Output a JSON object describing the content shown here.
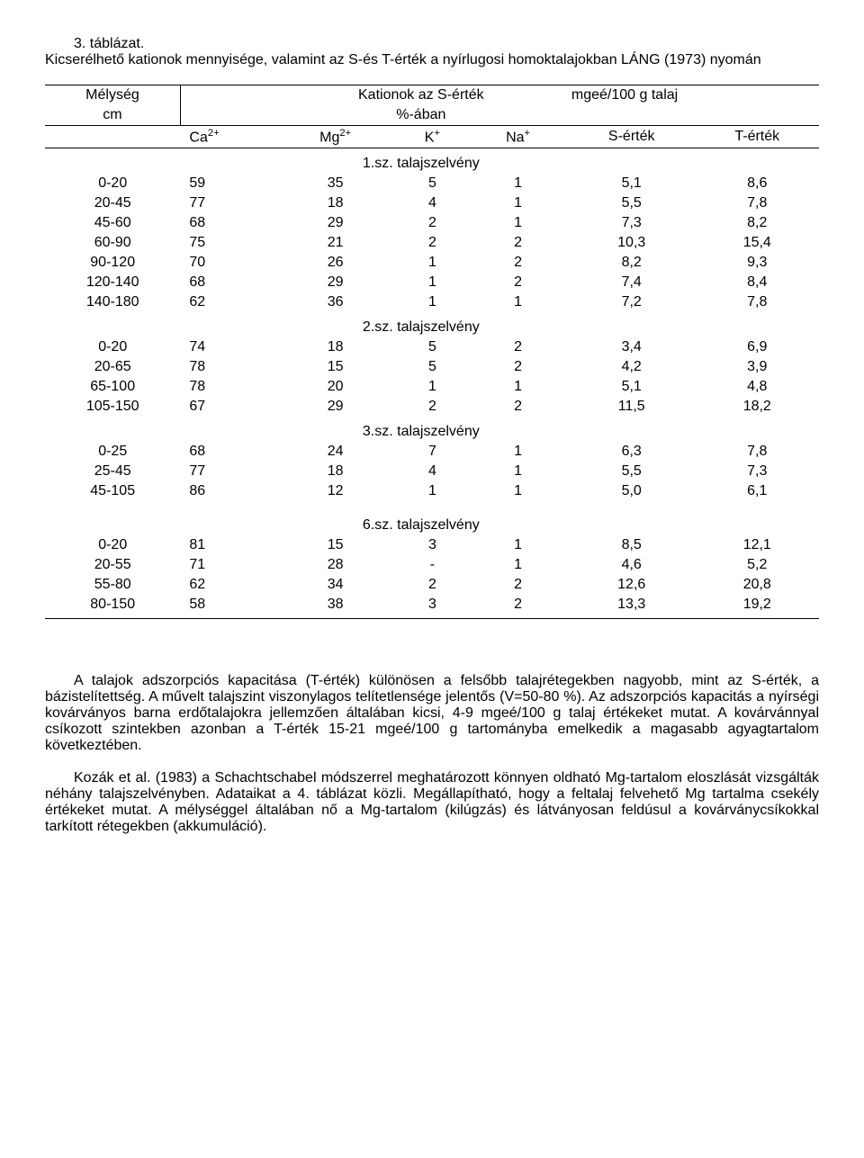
{
  "title": {
    "line1": "3. táblázat.",
    "line2_full": "Kicserélhető kationok mennyisége, valamint az S-és T-érték a nyírlugosi homoktalajokban LÁNG (1973) nyomán"
  },
  "header": {
    "depth_label": "Mélység",
    "depth_unit": "cm",
    "cations_label": "Kationok az S-érték",
    "percent_label": "%-ában",
    "unit_label": "mgeé/100 g talaj",
    "ca": "Ca",
    "ca_sup": "2+",
    "mg": "Mg",
    "mg_sup": "2+",
    "k": "K",
    "k_sup": "+",
    "na": "Na",
    "na_sup": "+",
    "s_label": "S-érték",
    "t_label": "T-érték"
  },
  "groups": [
    {
      "label": "1.sz. talajszelvény",
      "rows": [
        {
          "d": "0-20",
          "ca": "59",
          "mg": "35",
          "k": "5",
          "na": "1",
          "s": "5,1",
          "t": "8,6"
        },
        {
          "d": "20-45",
          "ca": "77",
          "mg": "18",
          "k": "4",
          "na": "1",
          "s": "5,5",
          "t": "7,8"
        },
        {
          "d": "45-60",
          "ca": "68",
          "mg": "29",
          "k": "2",
          "na": "1",
          "s": "7,3",
          "t": "8,2"
        },
        {
          "d": "60-90",
          "ca": "75",
          "mg": "21",
          "k": "2",
          "na": "2",
          "s": "10,3",
          "t": "15,4"
        },
        {
          "d": "90-120",
          "ca": "70",
          "mg": "26",
          "k": "1",
          "na": "2",
          "s": "8,2",
          "t": "9,3"
        },
        {
          "d": "120-140",
          "ca": "68",
          "mg": "29",
          "k": "1",
          "na": "2",
          "s": "7,4",
          "t": "8,4"
        },
        {
          "d": "140-180",
          "ca": "62",
          "mg": "36",
          "k": "1",
          "na": "1",
          "s": "7,2",
          "t": "7,8"
        }
      ]
    },
    {
      "label": "2.sz. talajszelvény",
      "rows": [
        {
          "d": "0-20",
          "ca": "74",
          "mg": "18",
          "k": "5",
          "na": "2",
          "s": "3,4",
          "t": "6,9"
        },
        {
          "d": "20-65",
          "ca": "78",
          "mg": "15",
          "k": "5",
          "na": "2",
          "s": "4,2",
          "t": "3,9"
        },
        {
          "d": "65-100",
          "ca": "78",
          "mg": "20",
          "k": "1",
          "na": "1",
          "s": "5,1",
          "t": "4,8"
        },
        {
          "d": "105-150",
          "ca": "67",
          "mg": "29",
          "k": "2",
          "na": "2",
          "s": "11,5",
          "t": "18,2"
        }
      ]
    },
    {
      "label": "3.sz. talajszelvény",
      "rows": [
        {
          "d": "0-25",
          "ca": "68",
          "mg": "24",
          "k": "7",
          "na": "1",
          "s": "6,3",
          "t": "7,8"
        },
        {
          "d": "25-45",
          "ca": "77",
          "mg": "18",
          "k": "4",
          "na": "1",
          "s": "5,5",
          "t": "7,3"
        },
        {
          "d": "45-105",
          "ca": "86",
          "mg": "12",
          "k": "1",
          "na": "1",
          "s": "5,0",
          "t": "6,1"
        }
      ]
    },
    {
      "label": "6.sz. talajszelvény",
      "gap": true,
      "rows": [
        {
          "d": "0-20",
          "ca": "81",
          "mg": "15",
          "k": "3",
          "na": "1",
          "s": "8,5",
          "t": "12,1"
        },
        {
          "d": "20-55",
          "ca": "71",
          "mg": "28",
          "k": "-",
          "na": "1",
          "s": "4,6",
          "t": "5,2"
        },
        {
          "d": "55-80",
          "ca": "62",
          "mg": "34",
          "k": "2",
          "na": "2",
          "s": "12,6",
          "t": "20,8"
        },
        {
          "d": "80-150",
          "ca": "58",
          "mg": "38",
          "k": "3",
          "na": "2",
          "s": "13,3",
          "t": "19,2"
        }
      ]
    }
  ],
  "body": {
    "p1": "A talajok adszorpciós kapacitása (T-érték) különösen a felsőbb talajrétegekben nagyobb, mint az S-érték, a bázistelítettség. A művelt talajszint viszonylagos telítetlensége jelentős (V=50-80 %). Az adszorpciós kapacitás a nyírségi kovárványos barna erdőtalajokra jellemzően általában kicsi, 4-9 mgeé/100 g talaj értékeket mutat. A kovárvánnyal csíkozott szintekben azonban a T-érték 15-21 mgeé/100 g tartományba emelkedik a magasabb agyagtartalom következtében.",
    "p2": "Kozák et al. (1983) a Schachtschabel módszerrel meghatározott könnyen oldható Mg-tartalom eloszlását vizsgálták néhány talajszelvényben. Adataikat a 4. táblázat közli. Megállapítható, hogy a feltalaj felvehető Mg tartalma csekély értékeket mutat. A mélységgel általában nő a Mg-tartalom (kilúgzás) és látványosan feldúsul a kovárványcsíkokkal tarkított rétegekben (akkumuláció)."
  }
}
